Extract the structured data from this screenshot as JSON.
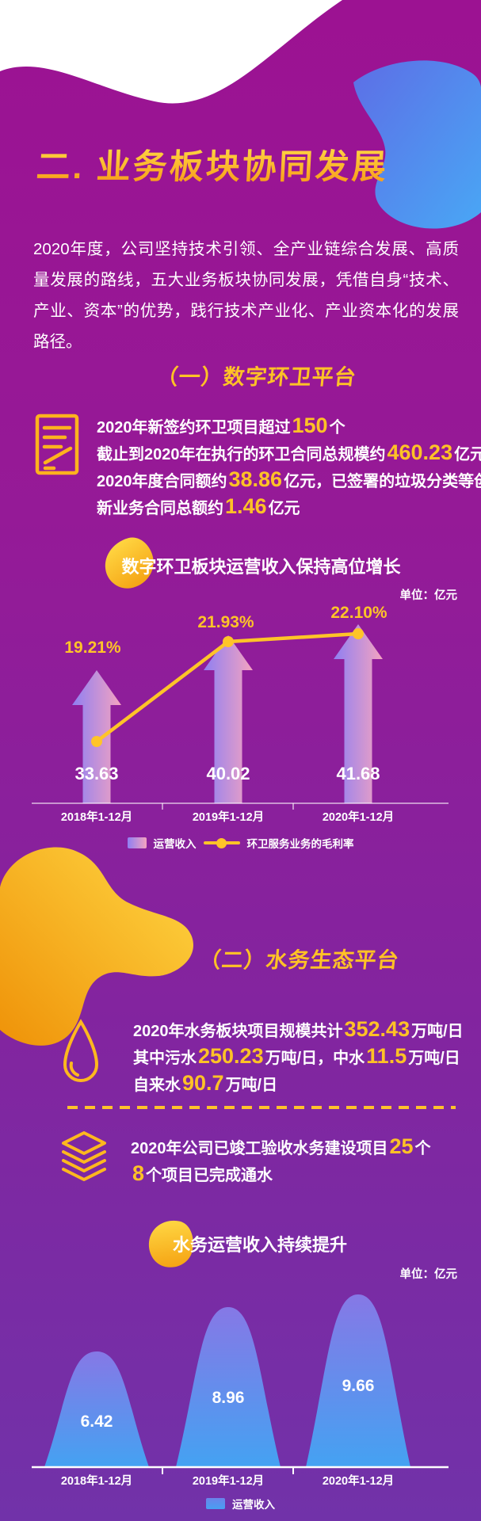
{
  "page_title": "二. 业务板块协同发展",
  "intro": "2020年度，公司坚持技术引领、全产业链综合发展、高质量发展的路线，五大业务板块协同发展，凭借自身“技术、产业、资本”的优势，践行技术产业化、产业资本化的发展路径。",
  "sections": [
    {
      "heading": "（一）数字环卫平台",
      "stat_lines": [
        [
          {
            "t": "2020年新签约环卫项目超过"
          },
          {
            "t": "150",
            "em": true
          },
          {
            "t": "个"
          }
        ],
        [
          {
            "t": "截止到2020年在执行的环卫合同总规模约"
          },
          {
            "t": "460.23",
            "em": true
          },
          {
            "t": "亿元，"
          }
        ],
        [
          {
            "t": "2020年度合同额约"
          },
          {
            "t": "38.86",
            "em": true
          },
          {
            "t": "亿元，已签署的垃圾分类等创"
          }
        ],
        [
          {
            "t": "新业务合同总额约"
          },
          {
            "t": "1.46",
            "em": true
          },
          {
            "t": "亿元"
          }
        ]
      ]
    },
    {
      "heading": "（二）水务生态平台",
      "water_lines": [
        [
          {
            "t": "2020年水务板块项目规模共计"
          },
          {
            "t": "352.43",
            "em": true
          },
          {
            "t": "万吨/日"
          }
        ],
        [
          {
            "t": "其中污水"
          },
          {
            "t": "250.23",
            "em": true
          },
          {
            "t": "万吨/日，中水"
          },
          {
            "t": "11.5",
            "em": true
          },
          {
            "t": "万吨/日"
          }
        ],
        [
          {
            "t": "自来水"
          },
          {
            "t": "90.7",
            "em": true
          },
          {
            "t": "万吨/日"
          }
        ]
      ],
      "build_lines": [
        [
          {
            "t": "2020年公司已竣工验收水务建设项目"
          },
          {
            "t": "25",
            "em": true
          },
          {
            "t": "个"
          }
        ],
        [
          {
            "t": "8",
            "em": true
          },
          {
            "t": "个项目已完成通水"
          }
        ]
      ]
    }
  ],
  "chart_data": [
    {
      "type": "bar",
      "title": "数字环卫板块运营收入保持高位增长",
      "unit": "单位：亿元",
      "categories": [
        "2018年1-12月",
        "2019年1-12月",
        "2020年1-12月"
      ],
      "series": [
        {
          "name": "运营收入",
          "type": "bar",
          "values": [
            33.63,
            40.02,
            41.68
          ]
        },
        {
          "name": "环卫服务业务的毛利率",
          "type": "line",
          "values": [
            19.21,
            21.93,
            22.1
          ],
          "labels": [
            "19.21%",
            "21.93%",
            "22.10%"
          ]
        }
      ],
      "legend_position": "bottom",
      "grid": false
    },
    {
      "type": "area",
      "title": "水务运营收入持续提升",
      "unit": "单位：亿元",
      "categories": [
        "2018年1-12月",
        "2019年1-12月",
        "2020年1-12月"
      ],
      "series": [
        {
          "name": "运营收入",
          "values": [
            6.42,
            8.96,
            9.66
          ]
        }
      ],
      "legend_position": "bottom",
      "grid": false
    }
  ],
  "colors": {
    "background_top": "#9c1292",
    "background_bottom": "#7132a9",
    "accent_yellow": "#ffc226",
    "arrow_gradient": [
      "#8f7ff2",
      "#f4a3c0"
    ],
    "mountain_gradient": [
      "#8678e6",
      "#44a2f2"
    ],
    "blue_blob_gradient": [
      "#5d6ee6",
      "#49a7f5"
    ]
  }
}
